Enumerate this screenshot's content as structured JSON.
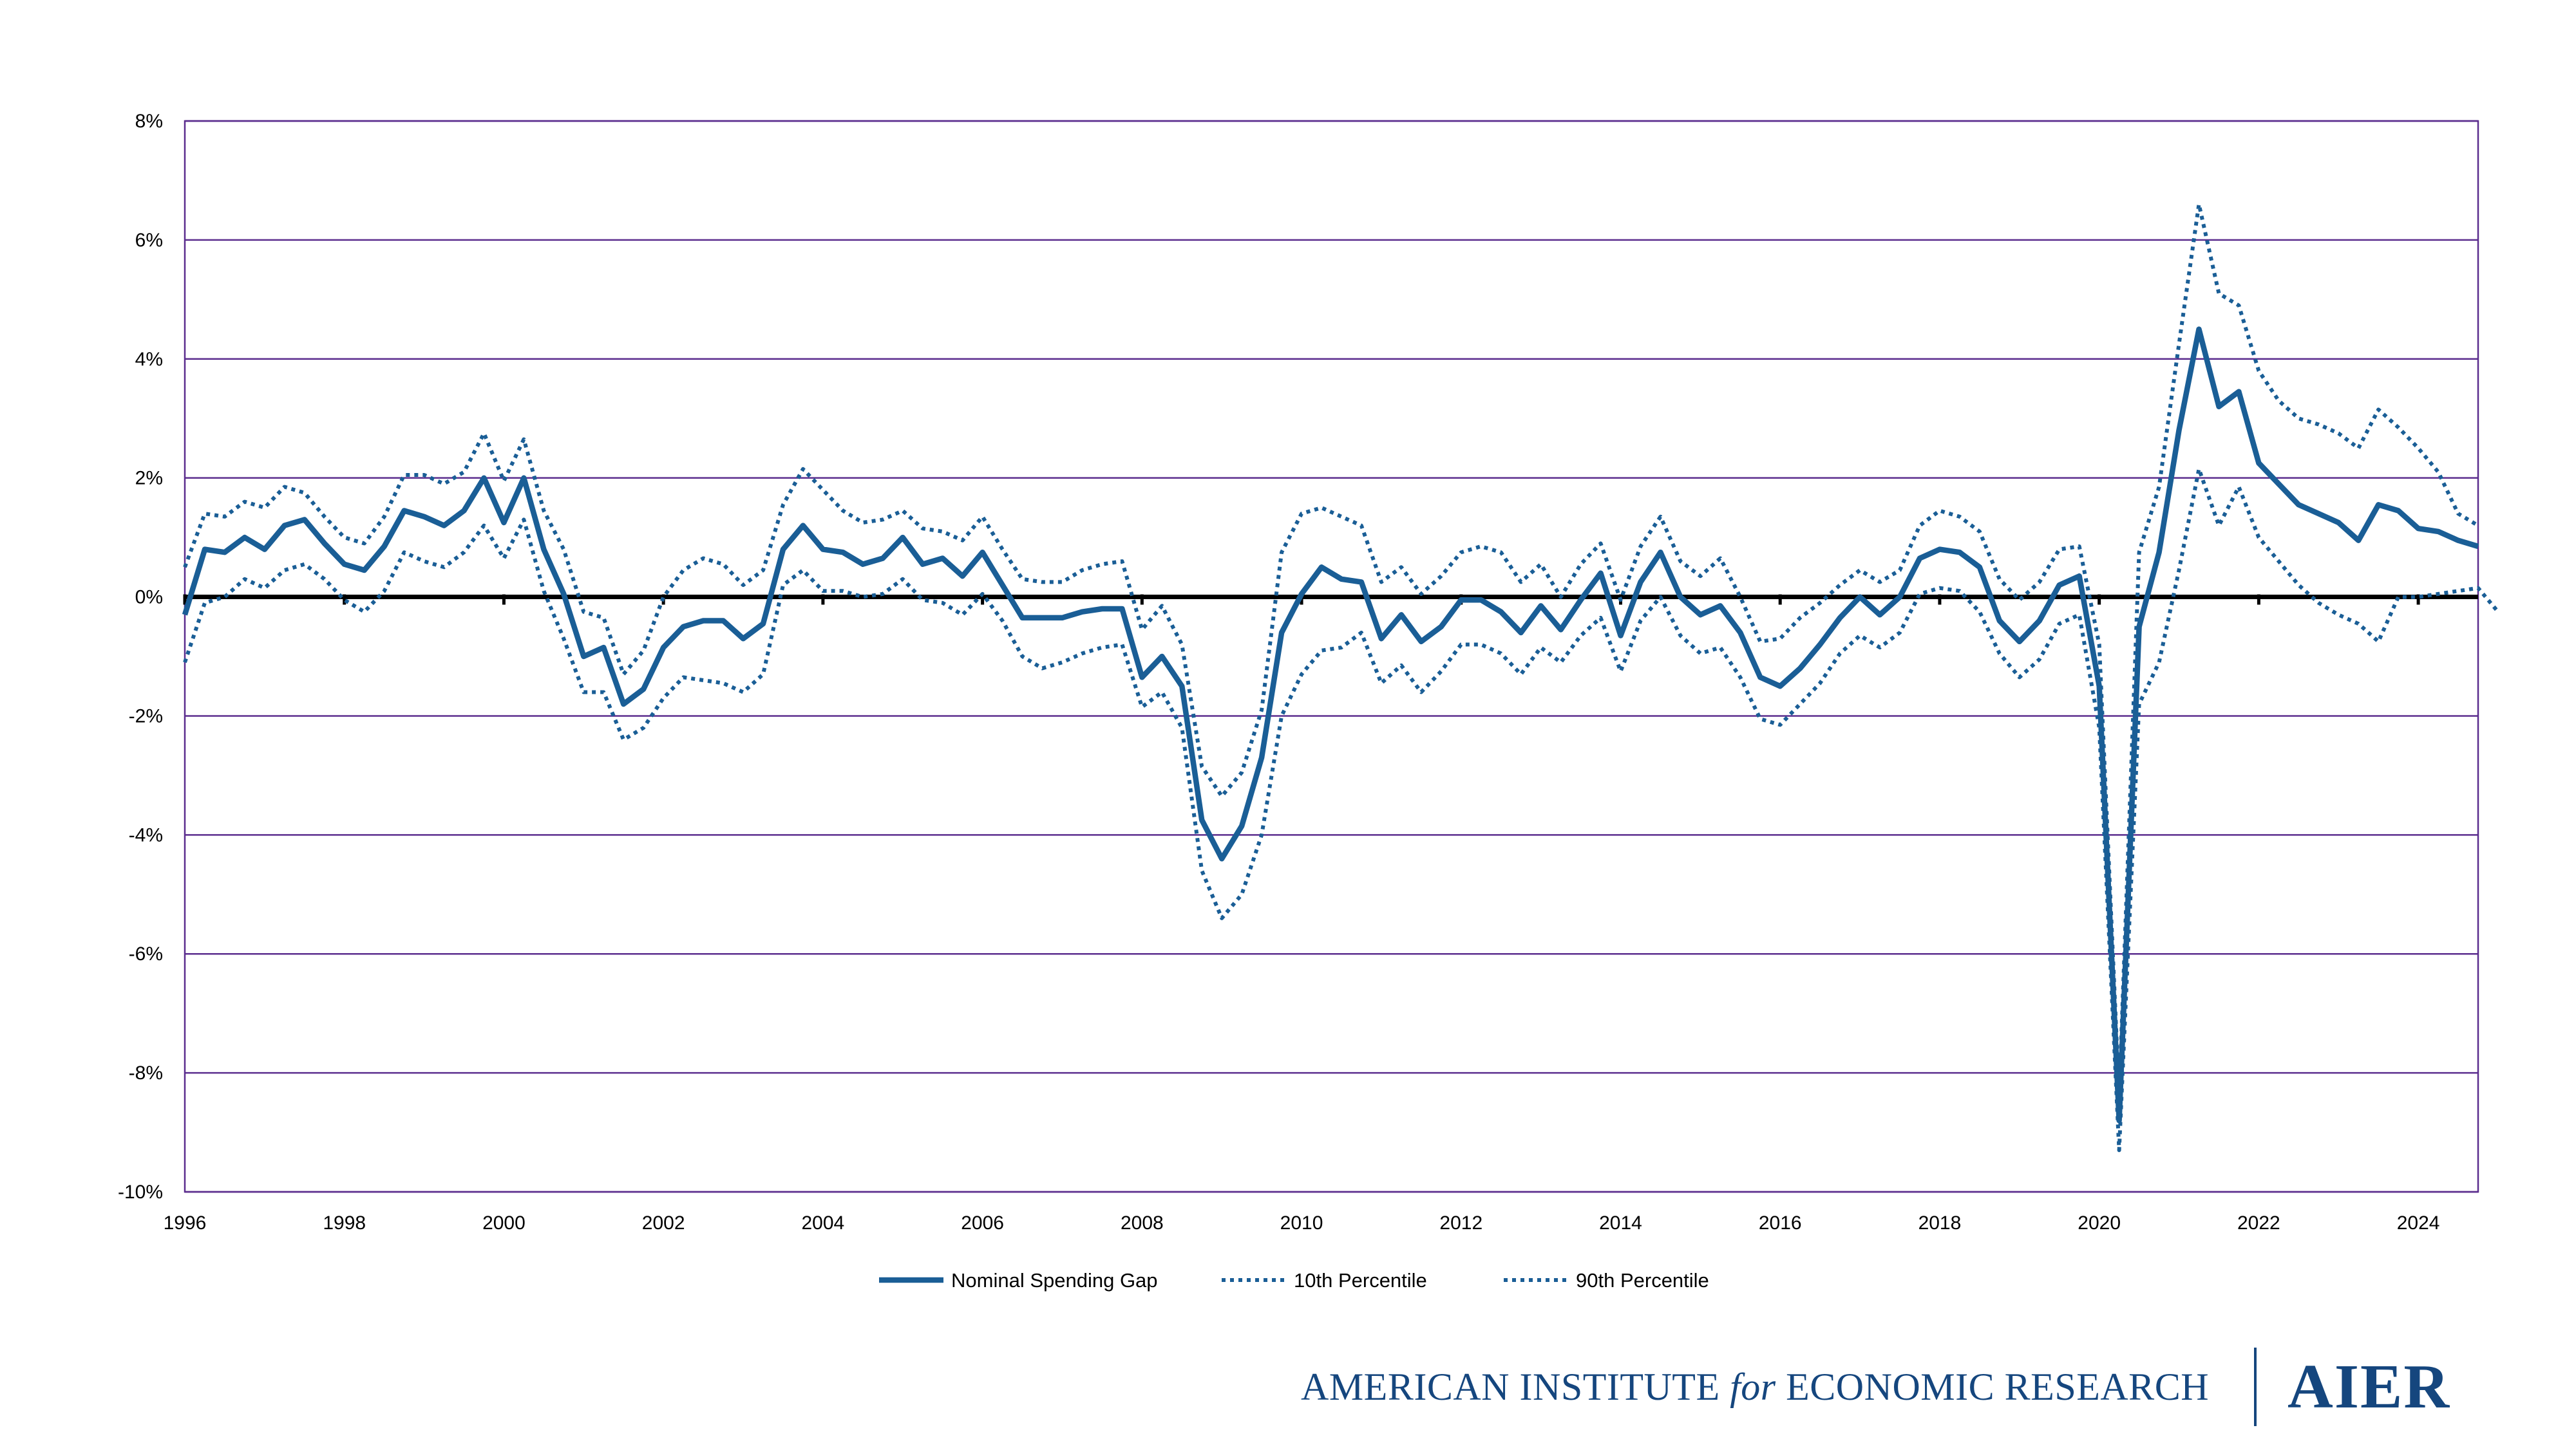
{
  "chart_data": {
    "type": "line",
    "title": "",
    "xlabel": "",
    "ylabel": "",
    "xlim": [
      1996,
      2024.75
    ],
    "ylim": [
      -10,
      8
    ],
    "x_ticks": [
      "1996",
      "1998",
      "2000",
      "2002",
      "2004",
      "2006",
      "2008",
      "2010",
      "2012",
      "2014",
      "2016",
      "2018",
      "2020",
      "2022",
      "2024"
    ],
    "y_ticks": [
      "8%",
      "6%",
      "4%",
      "2%",
      "0%",
      "-2%",
      "-4%",
      "-6%",
      "-8%",
      "-10%"
    ],
    "grid": "horizontal",
    "legend_position": "bottom",
    "x_start_year": 1996,
    "x_step": 0.25,
    "series": [
      {
        "name": "Nominal Spending Gap",
        "style": "solid",
        "color": "#1a5e96",
        "values": [
          -0.3,
          0.8,
          0.75,
          1.0,
          0.8,
          1.2,
          1.3,
          0.9,
          0.55,
          0.45,
          0.85,
          1.45,
          1.35,
          1.2,
          1.45,
          2.0,
          1.25,
          2.0,
          0.8,
          0.05,
          -1.0,
          -0.85,
          -1.8,
          -1.55,
          -0.85,
          -0.5,
          -0.4,
          -0.4,
          -0.7,
          -0.45,
          0.8,
          1.2,
          0.8,
          0.75,
          0.55,
          0.65,
          1.0,
          0.55,
          0.65,
          0.35,
          0.75,
          0.2,
          -0.35,
          -0.35,
          -0.35,
          -0.25,
          -0.2,
          -0.2,
          -1.35,
          -1.0,
          -1.5,
          -3.75,
          -4.4,
          -3.85,
          -2.7,
          -0.6,
          0.05,
          0.5,
          0.3,
          0.25,
          -0.7,
          -0.3,
          -0.75,
          -0.5,
          -0.05,
          -0.05,
          -0.25,
          -0.6,
          -0.15,
          -0.55,
          -0.05,
          0.4,
          -0.65,
          0.25,
          0.75,
          0.0,
          -0.3,
          -0.15,
          -0.6,
          -1.35,
          -1.5,
          -1.2,
          -0.8,
          -0.35,
          0.0,
          -0.3,
          0.0,
          0.65,
          0.8,
          0.75,
          0.5,
          -0.4,
          -0.75,
          -0.4,
          0.2,
          0.35,
          -1.5,
          -8.8,
          -0.5,
          0.75,
          2.8,
          4.5,
          3.2,
          3.45,
          2.25,
          1.9,
          1.55,
          1.4,
          1.25,
          0.95,
          1.55,
          1.45,
          1.15,
          1.1,
          0.95,
          0.85
        ]
      },
      {
        "name": "10th Percentile",
        "style": "dotted",
        "color": "#1a5e96",
        "values": [
          -1.1,
          -0.1,
          0.0,
          0.3,
          0.15,
          0.45,
          0.55,
          0.3,
          -0.05,
          -0.25,
          0.1,
          0.75,
          0.6,
          0.5,
          0.75,
          1.2,
          0.65,
          1.3,
          0.1,
          -0.7,
          -1.6,
          -1.6,
          -2.4,
          -2.2,
          -1.7,
          -1.35,
          -1.4,
          -1.45,
          -1.6,
          -1.3,
          0.2,
          0.45,
          0.1,
          0.1,
          0.0,
          0.05,
          0.3,
          -0.05,
          -0.1,
          -0.3,
          0.05,
          -0.4,
          -1.0,
          -1.2,
          -1.1,
          -0.95,
          -0.85,
          -0.8,
          -1.85,
          -1.6,
          -2.2,
          -4.6,
          -5.4,
          -5.0,
          -4.0,
          -2.0,
          -1.3,
          -0.9,
          -0.85,
          -0.6,
          -1.45,
          -1.15,
          -1.6,
          -1.25,
          -0.8,
          -0.8,
          -0.95,
          -1.3,
          -0.85,
          -1.1,
          -0.65,
          -0.35,
          -1.25,
          -0.4,
          0.0,
          -0.65,
          -0.95,
          -0.85,
          -1.35,
          -2.05,
          -2.15,
          -1.8,
          -1.45,
          -0.95,
          -0.65,
          -0.85,
          -0.6,
          0.05,
          0.15,
          0.1,
          -0.25,
          -0.95,
          -1.35,
          -1.05,
          -0.45,
          -0.3,
          -2.2,
          -9.3,
          -1.8,
          -1.1,
          0.45,
          2.15,
          1.2,
          1.85,
          1.0,
          0.6,
          0.2,
          -0.1,
          -0.3,
          -0.45,
          -0.75,
          0.0,
          0.0,
          0.05,
          0.1,
          0.15,
          -0.25
        ]
      },
      {
        "name": "90th Percentile",
        "style": "dotted",
        "color": "#1a5e96",
        "values": [
          0.5,
          1.4,
          1.35,
          1.6,
          1.5,
          1.85,
          1.75,
          1.35,
          1.0,
          0.9,
          1.35,
          2.05,
          2.05,
          1.9,
          2.1,
          2.75,
          1.95,
          2.65,
          1.45,
          0.8,
          -0.25,
          -0.35,
          -1.3,
          -0.9,
          0.0,
          0.45,
          0.65,
          0.55,
          0.2,
          0.45,
          1.55,
          2.15,
          1.8,
          1.45,
          1.25,
          1.3,
          1.45,
          1.15,
          1.1,
          0.95,
          1.35,
          0.8,
          0.3,
          0.25,
          0.25,
          0.45,
          0.55,
          0.6,
          -0.55,
          -0.15,
          -0.8,
          -2.85,
          -3.35,
          -2.95,
          -1.9,
          0.75,
          1.4,
          1.5,
          1.35,
          1.2,
          0.25,
          0.5,
          0.05,
          0.35,
          0.75,
          0.85,
          0.75,
          0.25,
          0.55,
          0.0,
          0.55,
          0.9,
          -0.05,
          0.85,
          1.35,
          0.6,
          0.35,
          0.65,
          0.0,
          -0.75,
          -0.7,
          -0.35,
          -0.1,
          0.2,
          0.45,
          0.25,
          0.45,
          1.2,
          1.45,
          1.35,
          1.1,
          0.3,
          -0.05,
          0.25,
          0.8,
          0.85,
          -0.8,
          -8.4,
          0.75,
          1.85,
          4.25,
          6.6,
          5.1,
          4.9,
          3.8,
          3.3,
          3.0,
          2.9,
          2.75,
          2.5,
          3.15,
          2.85,
          2.5,
          2.1,
          1.4,
          1.2
        ]
      }
    ]
  },
  "footer": {
    "org_name_part1": "AMERICAN INSTITUTE ",
    "org_name_for": "for",
    "org_name_part2": " ECONOMIC RESEARCH",
    "logo_text": "AIER"
  }
}
